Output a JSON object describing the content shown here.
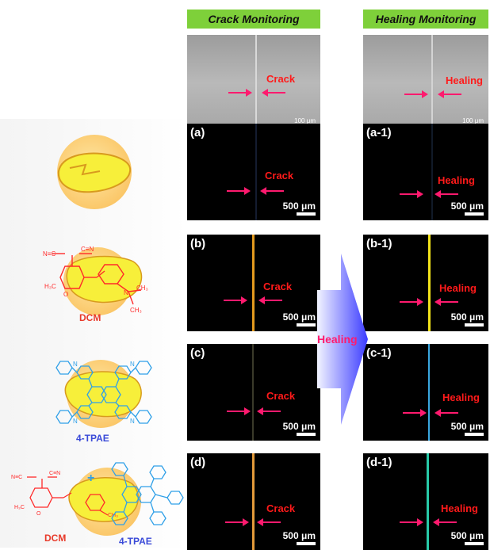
{
  "headers": {
    "crack": "Crack Monitoring",
    "healing": "Healing Monitoring"
  },
  "words": {
    "crack": "Crack",
    "healing": "Healing"
  },
  "sem_scale": "100 μm",
  "fluor_scale": "500 μm",
  "panels_left": [
    {
      "label": "(a)"
    },
    {
      "label": "(b)"
    },
    {
      "label": "(c)"
    },
    {
      "label": "(d)"
    }
  ],
  "panels_right": [
    {
      "label": "(a-1)"
    },
    {
      "label": "(b-1)"
    },
    {
      "label": "(c-1)"
    },
    {
      "label": "(d-1)"
    }
  ],
  "molecules": {
    "dcm": "DCM",
    "tpae": "4-TPAE"
  },
  "healing_arrow_text": "Healing",
  "colors": {
    "header_bg": "#7ed03a",
    "label_red": "#ff1a1a",
    "arrow_pink": "#ff1a6e",
    "line_b": "#e39a1e",
    "line_b1": "#f2e31a",
    "line_c": "#3a3a2a",
    "line_c1": "#3aa7e0",
    "line_d": "#e39a3a",
    "line_d1": "#28c9a8"
  }
}
